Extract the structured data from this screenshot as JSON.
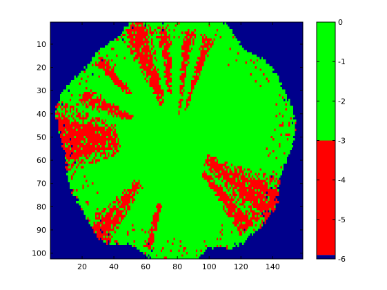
{
  "chart_data": {
    "type": "heatmap",
    "title": "",
    "xlabel": "",
    "ylabel": "",
    "xlim": [
      0,
      159
    ],
    "ylim": [
      102.5,
      0.5
    ],
    "x_ticks": [
      20,
      40,
      60,
      80,
      100,
      120,
      140
    ],
    "y_ticks": [
      10,
      20,
      30,
      40,
      50,
      60,
      70,
      80,
      90,
      100
    ],
    "colorbar": {
      "range": [
        -6,
        0
      ],
      "ticks": [
        0,
        -1,
        -2,
        -3,
        -4,
        -5,
        -6
      ],
      "bands": [
        {
          "from": -3,
          "to": 0,
          "color": "#00ff00"
        },
        {
          "from": -5.9,
          "to": -3,
          "color": "#ff0000"
        },
        {
          "from": -6,
          "to": -5.9,
          "color": "#00008b"
        }
      ]
    },
    "background_value": -6,
    "region_shape": {
      "type": "disc",
      "center": [
        79,
        51
      ],
      "radius": [
        74,
        53
      ]
    },
    "red_streaks": [
      {
        "angle_deg": 180,
        "width_deg": 22,
        "r_from": 0.5,
        "r_to": 1.0
      },
      {
        "angle_deg": 162,
        "width_deg": 8,
        "r_from": 0.4,
        "r_to": 0.85
      },
      {
        "angle_deg": 145,
        "width_deg": 6,
        "r_from": 0.55,
        "r_to": 0.95
      },
      {
        "angle_deg": 118,
        "width_deg": 18,
        "r_from": 0.3,
        "r_to": 0.98
      },
      {
        "angle_deg": 100,
        "width_deg": 10,
        "r_from": 0.4,
        "r_to": 0.95
      },
      {
        "angle_deg": 80,
        "width_deg": 10,
        "r_from": 0.2,
        "r_to": 0.9
      },
      {
        "angle_deg": 65,
        "width_deg": 8,
        "r_from": 0.25,
        "r_to": 0.85
      },
      {
        "angle_deg": 335,
        "width_deg": 18,
        "r_from": 0.3,
        "r_to": 1.0
      },
      {
        "angle_deg": 320,
        "width_deg": 10,
        "r_from": 0.35,
        "r_to": 0.95
      },
      {
        "angle_deg": 220,
        "width_deg": 12,
        "r_from": 0.45,
        "r_to": 1.0
      },
      {
        "angle_deg": 250,
        "width_deg": 6,
        "r_from": 0.55,
        "r_to": 0.95
      }
    ],
    "colors": {
      "high": "#00ff00",
      "mid": "#ff0000",
      "low": "#00008b"
    }
  }
}
